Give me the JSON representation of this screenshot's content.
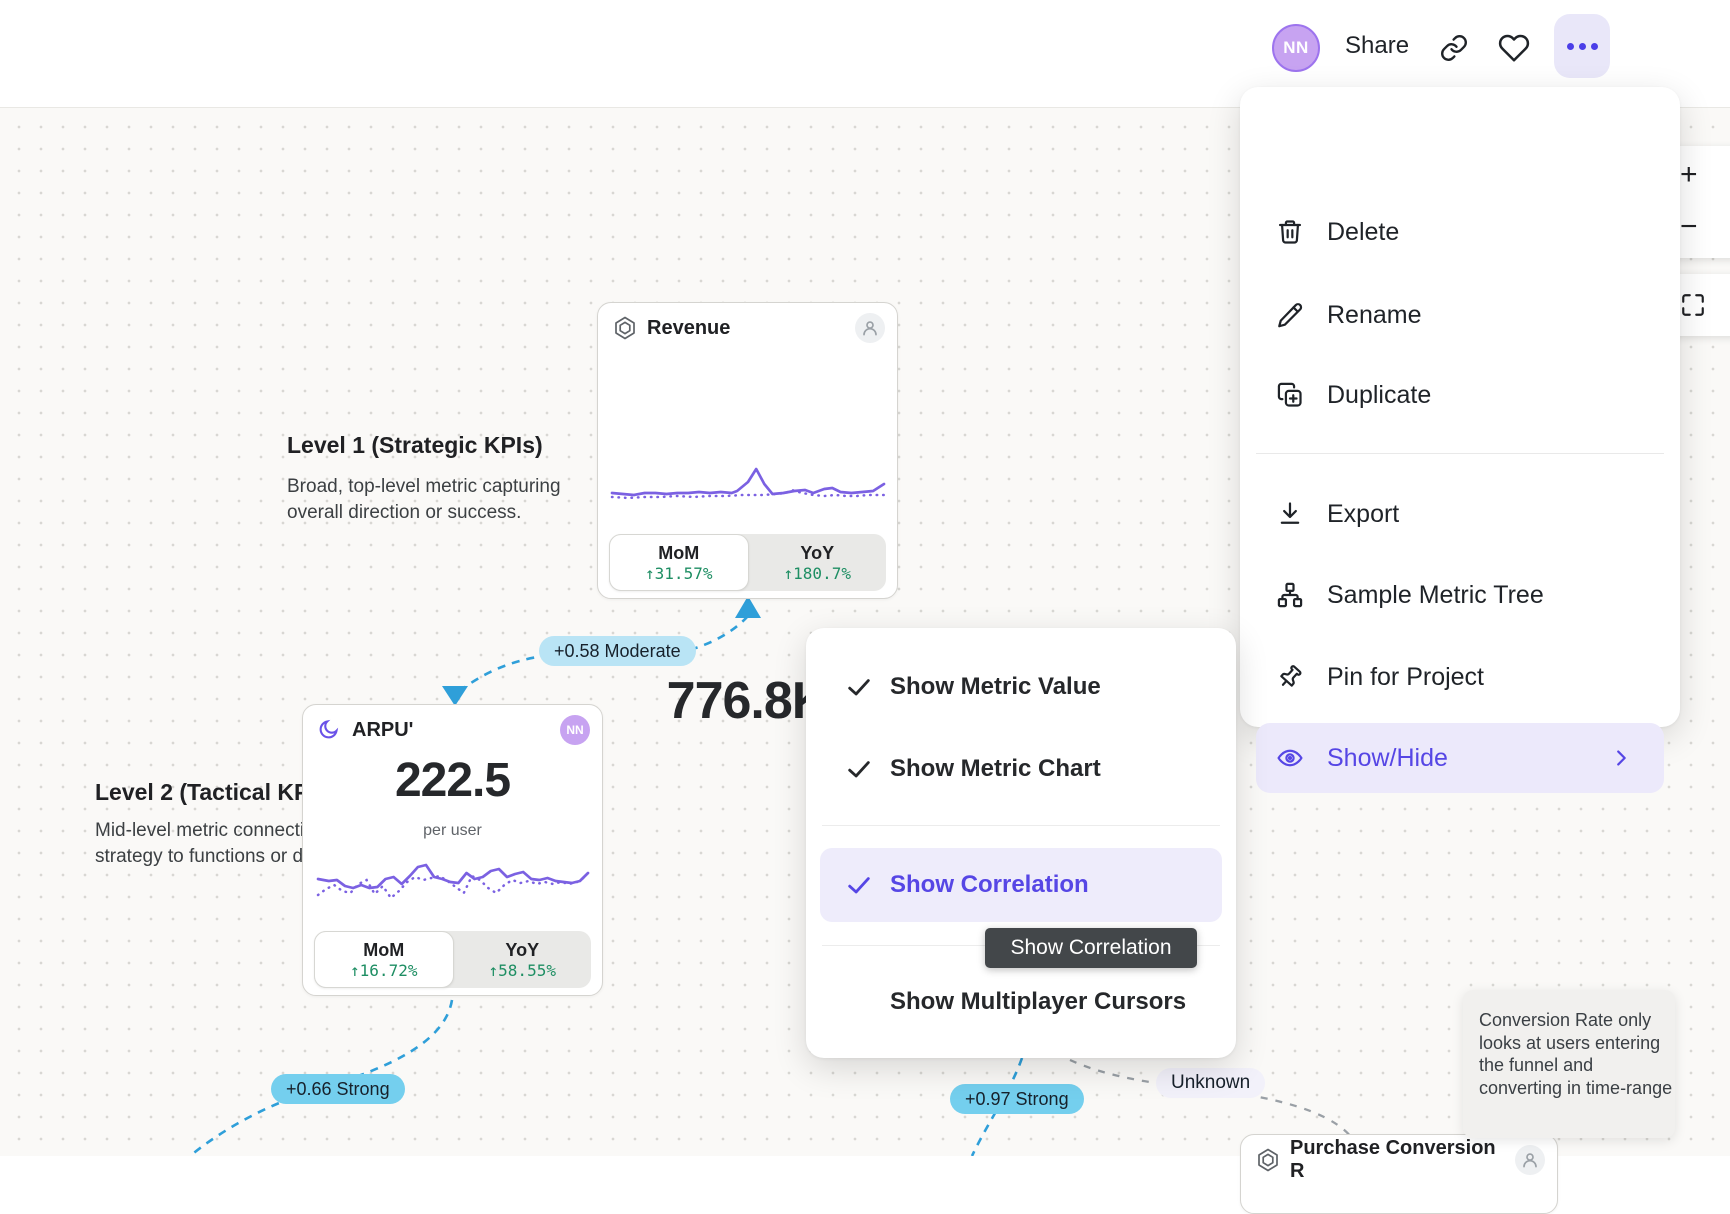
{
  "topbar": {
    "avatar_initials": "NN",
    "share_label": "Share"
  },
  "menu": {
    "items": [
      {
        "label": "Delete",
        "icon": "trash-icon"
      },
      {
        "label": "Rename",
        "icon": "pencil-icon"
      },
      {
        "label": "Duplicate",
        "icon": "duplicate-icon"
      },
      {
        "label": "Export",
        "icon": "download-icon"
      },
      {
        "label": "Sample Metric Tree",
        "icon": "tree-icon"
      },
      {
        "label": "Pin for Project",
        "icon": "pin-icon"
      },
      {
        "label": "Show/Hide",
        "icon": "eye-icon"
      }
    ]
  },
  "submenu": {
    "items": [
      {
        "label": "Show Metric Value",
        "checked": true
      },
      {
        "label": "Show Metric Chart",
        "checked": true
      },
      {
        "label": "Show Correlation",
        "checked": true
      },
      {
        "label": "Show Multiplayer Cursors",
        "checked": false
      }
    ],
    "tooltip": "Show Correlation"
  },
  "cards": {
    "revenue": {
      "title": "Revenue",
      "value": "776.8K",
      "mom_label": "MoM",
      "mom_change": "↑31.57%",
      "yoy_label": "YoY",
      "yoy_change": "↑180.7%"
    },
    "arpu": {
      "title": "ARPU'",
      "owner_initials": "NN",
      "value": "222.5",
      "unit": "per user",
      "mom_label": "MoM",
      "mom_change": "↑16.72%",
      "yoy_label": "YoY",
      "yoy_change": "↑58.55%"
    },
    "purchase": {
      "title": "Purchase Conversion R"
    }
  },
  "annotations": {
    "level1_heading": "Level 1 (Strategic KPIs)",
    "level1_body_line1": "Broad, top-level metric capturing",
    "level1_body_line2": "overall direction or success.",
    "level2_heading": "Level 2 (Tactical KPIs)",
    "level2_body_line1": "Mid-level metric connecting",
    "level2_body_line2": "strategy to functions or domains."
  },
  "correlations": {
    "moderate_badge": "+0.58 Moderate",
    "strong_badge_1": "+0.66 Strong",
    "strong_badge_2": "+0.97 Strong",
    "unknown_label": "Unknown"
  },
  "callout": {
    "line1": "Conversion Rate only",
    "line2": "looks at users entering",
    "line3": "the funnel and",
    "line4": "converting in time-range"
  },
  "zoom_controls": {
    "zoom_in": "+",
    "zoom_out": "−"
  },
  "colors": {
    "accent_purple": "#5646e5",
    "highlight_bg": "#ece9fb",
    "sparkline_purple": "#7b61e2",
    "change_green": "#1e8e63",
    "strong_badge_cyan": "#74cfee",
    "moderate_badge_cyan": "#b9e4f5",
    "blue_connector": "#2f9fd9",
    "gray_connector": "#9aa0a6",
    "avatar_purple": "#c7a3f1",
    "dark_tooltip_bg": "#43474a"
  },
  "icons": {
    "topbar": [
      "link-icon",
      "heart-icon",
      "ellipsis-icon"
    ],
    "menu": [
      "trash-icon",
      "pencil-icon",
      "duplicate-icon",
      "download-icon",
      "tree-icon",
      "pin-icon",
      "eye-icon",
      "chevron-right-icon"
    ],
    "cards": [
      "hexagon-badge-icon",
      "moon-icon",
      "person-icon"
    ]
  },
  "sparklines": {
    "revenue": {
      "solid": [
        [
          0,
          34
        ],
        [
          4,
          35
        ],
        [
          8,
          36
        ],
        [
          12,
          34
        ],
        [
          16,
          34
        ],
        [
          20,
          35
        ],
        [
          24,
          34
        ],
        [
          28,
          34
        ],
        [
          32,
          33
        ],
        [
          36,
          34
        ],
        [
          40,
          33
        ],
        [
          44,
          34
        ],
        [
          46,
          32
        ],
        [
          50,
          23
        ],
        [
          53,
          10
        ],
        [
          56,
          25
        ],
        [
          59,
          35
        ],
        [
          63,
          34
        ],
        [
          67,
          32
        ],
        [
          71,
          31
        ],
        [
          74,
          34
        ],
        [
          78,
          30
        ],
        [
          81,
          29
        ],
        [
          84,
          33
        ],
        [
          88,
          34
        ],
        [
          92,
          33
        ],
        [
          96,
          32
        ],
        [
          100,
          25
        ]
      ],
      "dotted": [
        [
          0,
          38
        ],
        [
          6,
          39
        ],
        [
          12,
          38
        ],
        [
          18,
          38
        ],
        [
          24,
          37
        ],
        [
          30,
          38
        ],
        [
          36,
          37
        ],
        [
          42,
          37
        ],
        [
          48,
          36
        ],
        [
          52,
          36
        ],
        [
          56,
          36
        ],
        [
          60,
          35
        ],
        [
          64,
          34
        ],
        [
          66,
          31
        ],
        [
          70,
          34
        ],
        [
          74,
          36
        ],
        [
          78,
          37
        ],
        [
          82,
          36
        ],
        [
          86,
          37
        ],
        [
          90,
          37
        ],
        [
          94,
          36
        ],
        [
          100,
          36
        ]
      ]
    },
    "arpu": {
      "solid": [
        [
          0,
          24
        ],
        [
          4,
          26
        ],
        [
          7,
          25
        ],
        [
          10,
          31
        ],
        [
          13,
          33
        ],
        [
          16,
          30
        ],
        [
          19,
          33
        ],
        [
          22,
          32
        ],
        [
          25,
          24
        ],
        [
          28,
          22
        ],
        [
          31,
          29
        ],
        [
          34,
          21
        ],
        [
          37,
          12
        ],
        [
          40,
          10
        ],
        [
          43,
          22
        ],
        [
          46,
          24
        ],
        [
          49,
          27
        ],
        [
          52,
          28
        ],
        [
          55,
          18
        ],
        [
          58,
          24
        ],
        [
          61,
          22
        ],
        [
          64,
          16
        ],
        [
          67,
          14
        ],
        [
          70,
          22
        ],
        [
          73,
          19
        ],
        [
          76,
          17
        ],
        [
          79,
          24
        ],
        [
          82,
          25
        ],
        [
          85,
          23
        ],
        [
          88,
          26
        ],
        [
          91,
          27
        ],
        [
          94,
          28
        ],
        [
          97,
          26
        ],
        [
          100,
          18
        ]
      ],
      "dotted": [
        [
          0,
          40
        ],
        [
          3,
          34
        ],
        [
          6,
          30
        ],
        [
          9,
          36
        ],
        [
          12,
          38
        ],
        [
          15,
          29
        ],
        [
          18,
          25
        ],
        [
          21,
          39
        ],
        [
          24,
          31
        ],
        [
          27,
          43
        ],
        [
          30,
          36
        ],
        [
          33,
          27
        ],
        [
          36,
          22
        ],
        [
          39,
          25
        ],
        [
          42,
          23
        ],
        [
          45,
          21
        ],
        [
          48,
          26
        ],
        [
          51,
          32
        ],
        [
          54,
          38
        ],
        [
          57,
          21
        ],
        [
          60,
          25
        ],
        [
          63,
          33
        ],
        [
          66,
          38
        ],
        [
          69,
          30
        ],
        [
          72,
          25
        ],
        [
          75,
          28
        ],
        [
          78,
          26
        ],
        [
          81,
          29
        ],
        [
          84,
          27
        ],
        [
          87,
          29
        ],
        [
          90,
          27
        ],
        [
          93,
          29
        ],
        [
          96,
          27
        ],
        [
          100,
          20
        ]
      ]
    }
  }
}
